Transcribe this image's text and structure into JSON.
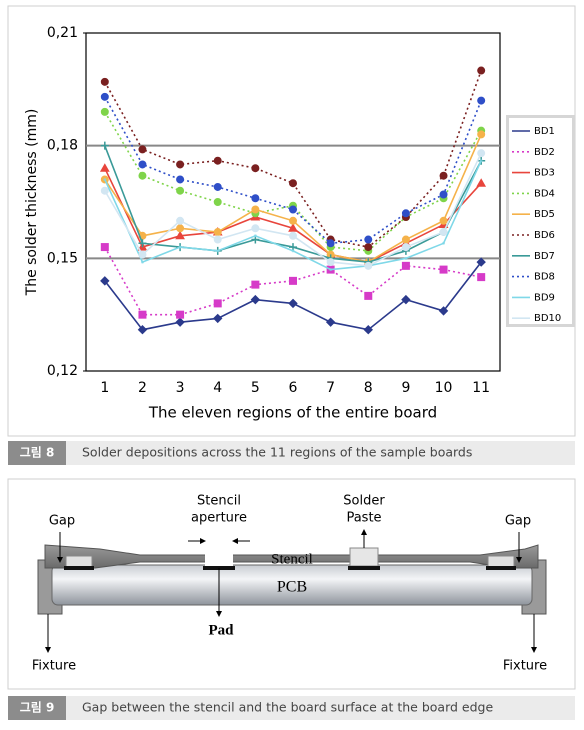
{
  "chart_data": {
    "type": "line",
    "y_label": "The solder thickness (mm)",
    "x_label": "The eleven regions of the entire board",
    "categories": [
      "1",
      "2",
      "3",
      "4",
      "5",
      "6",
      "7",
      "8",
      "9",
      "10",
      "11"
    ],
    "ylim": [
      0.12,
      0.21
    ],
    "yticks": [
      {
        "value": 0.12,
        "label": "0,12"
      },
      {
        "value": 0.15,
        "label": "0,15"
      },
      {
        "value": 0.18,
        "label": "0,18"
      },
      {
        "value": 0.21,
        "label": "0,21"
      }
    ],
    "grid": true,
    "legend": "right",
    "series": [
      {
        "name": "BD1",
        "color": "#2b3a8c",
        "marker": "diamond",
        "dash": "solid",
        "values": [
          0.144,
          0.131,
          0.133,
          0.134,
          0.139,
          0.138,
          0.133,
          0.131,
          0.139,
          0.136,
          0.149
        ]
      },
      {
        "name": "BD2",
        "color": "#d63bc8",
        "marker": "square",
        "dash": "dotted",
        "values": [
          0.153,
          0.135,
          0.135,
          0.138,
          0.143,
          0.144,
          0.147,
          0.14,
          0.148,
          0.147,
          0.145
        ]
      },
      {
        "name": "BD3",
        "color": "#e8453c",
        "marker": "triangle",
        "dash": "solid",
        "values": [
          0.174,
          0.153,
          0.156,
          0.157,
          0.161,
          0.158,
          0.151,
          0.149,
          0.154,
          0.159,
          0.17
        ]
      },
      {
        "name": "BD4",
        "color": "#7fd44a",
        "marker": "circle",
        "dash": "dotted",
        "values": [
          0.189,
          0.172,
          0.168,
          0.165,
          0.162,
          0.164,
          0.153,
          0.152,
          0.161,
          0.166,
          0.184
        ]
      },
      {
        "name": "BD5",
        "color": "#f5b24a",
        "marker": "circle",
        "dash": "solid",
        "values": [
          0.171,
          0.156,
          0.158,
          0.157,
          0.163,
          0.16,
          0.151,
          0.149,
          0.155,
          0.16,
          0.183
        ]
      },
      {
        "name": "BD6",
        "color": "#7a2020",
        "marker": "circle",
        "dash": "dotted",
        "values": [
          0.197,
          0.179,
          0.175,
          0.176,
          0.174,
          0.17,
          0.155,
          0.153,
          0.161,
          0.172,
          0.2
        ]
      },
      {
        "name": "BD7",
        "color": "#3a9a98",
        "marker": "plus",
        "dash": "solid",
        "values": [
          0.18,
          0.154,
          0.153,
          0.152,
          0.155,
          0.153,
          0.15,
          0.149,
          0.152,
          0.157,
          0.176
        ]
      },
      {
        "name": "BD8",
        "color": "#2f4fc8",
        "marker": "circle",
        "dash": "dotted",
        "values": [
          0.193,
          0.175,
          0.171,
          0.169,
          0.166,
          0.163,
          0.154,
          0.155,
          0.162,
          0.167,
          0.192
        ]
      },
      {
        "name": "BD9",
        "color": "#7fd8e8",
        "marker": "none",
        "dash": "solid",
        "values": [
          0.171,
          0.149,
          0.153,
          0.152,
          0.156,
          0.152,
          0.147,
          0.148,
          0.15,
          0.154,
          0.176
        ]
      },
      {
        "name": "BD10",
        "color": "#d2e6f2",
        "marker": "circle",
        "dash": "solid",
        "values": [
          0.168,
          0.151,
          0.16,
          0.155,
          0.158,
          0.156,
          0.149,
          0.148,
          0.153,
          0.157,
          0.178
        ]
      }
    ]
  },
  "figure8": {
    "label": "그림 8",
    "caption": "Solder depositions across the 11 regions of the sample boards"
  },
  "diagram": {
    "gap_left": "Gap",
    "stencil_aperture": [
      "Stencil",
      "aperture"
    ],
    "solder_paste": [
      "Solder",
      "Paste"
    ],
    "gap_right": "Gap",
    "stencil": "Stencil",
    "pcb": "PCB",
    "pad": "Pad",
    "fixture_left": "Fixture",
    "fixture_right": "Fixture"
  },
  "figure9": {
    "label": "그림 9",
    "caption": "Gap between the stencil and the board surface at the board edge"
  }
}
